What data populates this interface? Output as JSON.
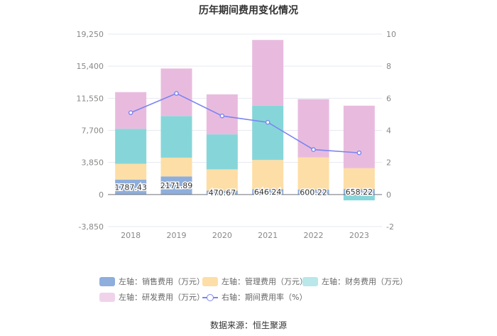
{
  "chart_data": {
    "type": "bar",
    "title": "历年期间费用变化情况",
    "categories": [
      "2018",
      "2019",
      "2020",
      "2021",
      "2022",
      "2023"
    ],
    "stacked": true,
    "left_axis": {
      "ylim": [
        -3850,
        19250
      ],
      "ticks": [
        "-3,850",
        "0",
        "3,850",
        "7,700",
        "11,550",
        "15,400",
        "19,250"
      ],
      "tick_values": [
        -3850,
        0,
        3850,
        7700,
        11550,
        15400,
        19250
      ]
    },
    "right_axis": {
      "ylim": [
        -2,
        10
      ],
      "ticks": [
        "-2",
        "0",
        "2",
        "4",
        "6",
        "8",
        "10"
      ],
      "tick_values": [
        -2,
        0,
        2,
        4,
        6,
        8,
        10
      ]
    },
    "series": [
      {
        "name": "左轴：销售费用（万元）",
        "type": "bar",
        "color": "#8eaedc",
        "values": [
          1787.43,
          2171.89,
          470.67,
          646.24,
          600.22,
          658.22
        ],
        "labels": [
          "1787.43",
          "2171.89",
          "470.67",
          "646.24",
          "600.22",
          "658.22"
        ]
      },
      {
        "name": "左轴：管理费用（万元）",
        "type": "bar",
        "color": "#fddea6",
        "values": [
          1900,
          2250,
          2550,
          3500,
          3850,
          2500
        ]
      },
      {
        "name": "左轴：财务费用（万元）",
        "type": "bar",
        "color": "#86d6d9",
        "values": [
          4200,
          5000,
          4200,
          6500,
          0,
          -700
        ]
      },
      {
        "name": "左轴：研发费用（万元）",
        "type": "bar",
        "color": "#e8bbde",
        "values": [
          4400,
          5700,
          4800,
          7900,
          7000,
          7500
        ]
      },
      {
        "name": "右轴：期间费用率（%）",
        "type": "line",
        "color": "#7b84f0",
        "values": [
          5.1,
          6.3,
          4.9,
          4.5,
          2.8,
          2.6
        ]
      }
    ],
    "grid": true,
    "legend_position": "bottom"
  },
  "source": "数据来源：恒生聚源"
}
